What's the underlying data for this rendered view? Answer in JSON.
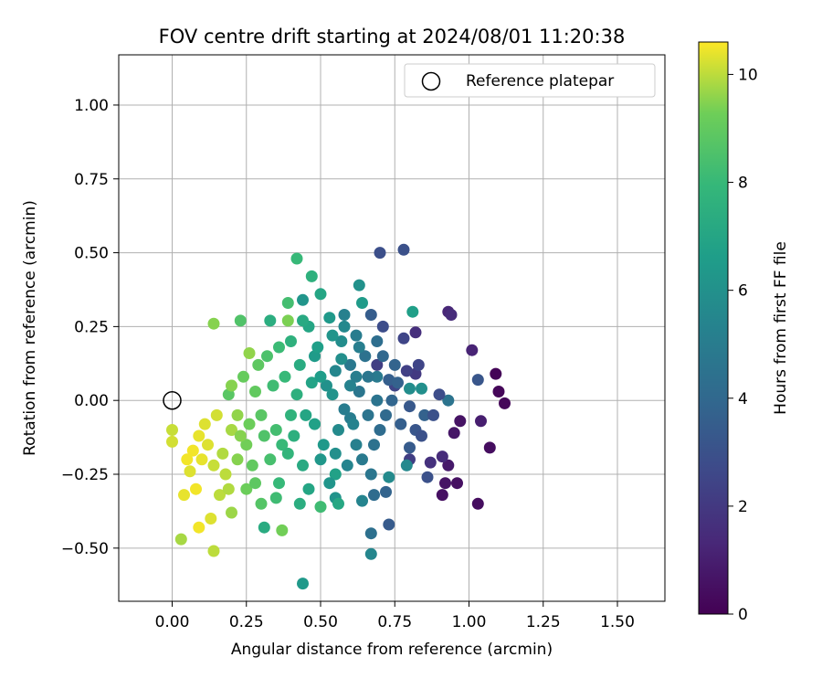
{
  "chart_data": {
    "type": "scatter",
    "title": "FOV centre drift starting at 2024/08/01 11:20:38",
    "xlabel": "Angular distance from reference (arcmin)",
    "ylabel": "Rotation from reference (arcmin)",
    "xlim": [
      -0.18,
      1.66
    ],
    "ylim": [
      -0.68,
      1.17
    ],
    "xticks": [
      0.0,
      0.25,
      0.5,
      0.75,
      1.0,
      1.25,
      1.5
    ],
    "xtick_labels": [
      "0.00",
      "0.25",
      "0.50",
      "0.75",
      "1.00",
      "1.25",
      "1.50"
    ],
    "yticks": [
      -0.5,
      -0.25,
      0.0,
      0.25,
      0.5,
      0.75,
      1.0
    ],
    "ytick_labels": [
      "−0.50",
      "−0.25",
      "0.00",
      "0.25",
      "0.50",
      "0.75",
      "1.00"
    ],
    "grid": true,
    "colormap": "viridis",
    "colorbar": {
      "label": "Hours from first FF file",
      "range": [
        0,
        10.6
      ],
      "ticks": [
        0,
        2,
        4,
        6,
        8,
        10
      ],
      "tick_labels": [
        "0",
        "2",
        "4",
        "6",
        "8",
        "10"
      ]
    },
    "legend": {
      "position": "top-right",
      "entries": [
        "Reference platepar"
      ]
    },
    "reference_point": {
      "x": 0.0,
      "y": 0.0
    },
    "series": [
      {
        "points": [
          [
            1.09,
            0.09,
            0.1
          ],
          [
            1.1,
            0.03,
            0.2
          ],
          [
            1.12,
            -0.01,
            0.2
          ],
          [
            1.07,
            -0.16,
            0.4
          ],
          [
            1.03,
            -0.35,
            0.4
          ],
          [
            0.96,
            -0.28,
            0.5
          ],
          [
            0.91,
            -0.32,
            0.5
          ],
          [
            0.92,
            -0.28,
            0.6
          ],
          [
            0.97,
            -0.07,
            0.6
          ],
          [
            0.95,
            -0.11,
            0.7
          ],
          [
            0.93,
            -0.22,
            0.8
          ],
          [
            1.04,
            -0.07,
            1.0
          ],
          [
            1.01,
            0.17,
            1.2
          ],
          [
            0.93,
            0.3,
            1.3
          ],
          [
            0.94,
            0.29,
            1.5
          ],
          [
            0.91,
            -0.19,
            1.5
          ],
          [
            0.82,
            0.23,
            1.6
          ],
          [
            0.87,
            -0.21,
            1.7
          ],
          [
            0.82,
            0.09,
            2.0
          ],
          [
            0.8,
            -0.2,
            2.2
          ],
          [
            0.69,
            0.12,
            2.2
          ],
          [
            0.79,
            0.1,
            2.3
          ],
          [
            0.83,
            0.12,
            2.5
          ],
          [
            0.78,
            0.21,
            2.5
          ],
          [
            0.75,
            0.05,
            2.5
          ],
          [
            0.71,
            0.25,
            2.8
          ],
          [
            0.7,
            0.5,
            2.9
          ],
          [
            0.78,
            0.51,
            3.0
          ],
          [
            0.86,
            -0.26,
            3.0
          ],
          [
            1.03,
            0.07,
            3.2
          ],
          [
            0.73,
            -0.42,
            3.4
          ],
          [
            0.8,
            -0.16,
            3.4
          ],
          [
            0.67,
            0.29,
            3.5
          ],
          [
            0.73,
            0.07,
            3.6
          ],
          [
            0.85,
            -0.05,
            3.7
          ],
          [
            0.72,
            -0.31,
            3.8
          ],
          [
            0.68,
            -0.32,
            4.2
          ],
          [
            0.67,
            -0.45,
            4.4
          ],
          [
            0.93,
            0.0,
            4.6
          ],
          [
            0.69,
            0.0,
            4.6
          ],
          [
            0.63,
            0.03,
            4.7
          ],
          [
            0.69,
            0.08,
            4.9
          ],
          [
            0.6,
            -0.06,
            5.0
          ],
          [
            0.58,
            0.29,
            5.2
          ],
          [
            0.64,
            -0.34,
            5.4
          ],
          [
            0.67,
            -0.52,
            5.5
          ],
          [
            0.79,
            -0.22,
            5.6
          ],
          [
            0.73,
            -0.26,
            5.7
          ],
          [
            0.8,
            0.04,
            5.8
          ],
          [
            0.84,
            0.04,
            5.9
          ],
          [
            0.63,
            0.39,
            6.0
          ],
          [
            0.55,
            -0.33,
            6.1
          ],
          [
            0.44,
            0.34,
            6.2
          ],
          [
            0.44,
            -0.62,
            6.4
          ],
          [
            0.64,
            0.33,
            6.5
          ],
          [
            0.81,
            0.3,
            6.7
          ],
          [
            0.55,
            -0.25,
            6.8
          ],
          [
            0.5,
            0.36,
            7.0
          ],
          [
            0.56,
            -0.35,
            7.1
          ],
          [
            0.31,
            -0.43,
            7.3
          ],
          [
            0.33,
            0.27,
            7.4
          ],
          [
            0.47,
            0.42,
            7.6
          ],
          [
            0.42,
            0.48,
            8.0
          ],
          [
            0.5,
            -0.36,
            8.2
          ],
          [
            0.39,
            0.33,
            8.3
          ],
          [
            0.23,
            0.27,
            8.6
          ],
          [
            0.19,
            0.02,
            8.8
          ],
          [
            0.37,
            -0.44,
            9.3
          ],
          [
            0.39,
            0.27,
            9.4
          ],
          [
            0.14,
            0.26,
            9.5
          ],
          [
            0.26,
            0.16,
            9.6
          ],
          [
            0.03,
            -0.47,
            9.8
          ],
          [
            0.14,
            -0.51,
            10.0
          ],
          [
            0.0,
            -0.1,
            10.1
          ],
          [
            0.0,
            -0.14,
            10.2
          ],
          [
            0.06,
            -0.24,
            10.3
          ],
          [
            0.04,
            -0.32,
            10.4
          ],
          [
            0.09,
            -0.43,
            10.5
          ],
          [
            0.55,
            0.1,
            5.5
          ],
          [
            0.52,
            0.05,
            6.0
          ],
          [
            0.58,
            -0.03,
            5.0
          ],
          [
            0.48,
            0.15,
            6.5
          ],
          [
            0.6,
            0.12,
            4.8
          ],
          [
            0.45,
            -0.05,
            7.0
          ],
          [
            0.62,
            -0.15,
            5.2
          ],
          [
            0.5,
            -0.2,
            6.3
          ],
          [
            0.57,
            0.2,
            5.8
          ],
          [
            0.65,
            0.15,
            4.5
          ],
          [
            0.42,
            0.02,
            7.5
          ],
          [
            0.38,
            0.08,
            8.0
          ],
          [
            0.35,
            -0.1,
            8.3
          ],
          [
            0.3,
            -0.05,
            8.8
          ],
          [
            0.28,
            0.03,
            9.0
          ],
          [
            0.25,
            -0.15,
            9.3
          ],
          [
            0.22,
            -0.2,
            9.5
          ],
          [
            0.2,
            -0.1,
            9.8
          ],
          [
            0.18,
            -0.25,
            10.0
          ],
          [
            0.15,
            -0.05,
            10.2
          ],
          [
            0.12,
            -0.15,
            10.3
          ],
          [
            0.1,
            -0.2,
            10.4
          ],
          [
            0.08,
            -0.3,
            10.5
          ],
          [
            0.32,
            0.15,
            8.5
          ],
          [
            0.4,
            0.2,
            7.6
          ],
          [
            0.46,
            0.25,
            7.0
          ],
          [
            0.53,
            0.28,
            6.4
          ],
          [
            0.6,
            0.05,
            5.3
          ],
          [
            0.66,
            -0.05,
            4.6
          ],
          [
            0.7,
            -0.1,
            4.2
          ],
          [
            0.74,
            0.0,
            3.9
          ],
          [
            0.77,
            -0.08,
            3.6
          ],
          [
            0.71,
            0.15,
            4.0
          ],
          [
            0.62,
            0.22,
            5.0
          ],
          [
            0.56,
            -0.1,
            5.7
          ],
          [
            0.51,
            -0.15,
            6.4
          ],
          [
            0.44,
            -0.22,
            7.2
          ],
          [
            0.36,
            -0.28,
            8.0
          ],
          [
            0.3,
            -0.35,
            8.7
          ],
          [
            0.25,
            -0.3,
            9.2
          ],
          [
            0.2,
            -0.38,
            9.7
          ],
          [
            0.16,
            -0.32,
            10.0
          ],
          [
            0.13,
            -0.4,
            10.3
          ],
          [
            0.34,
            0.05,
            8.2
          ],
          [
            0.43,
            0.12,
            7.3
          ],
          [
            0.48,
            -0.08,
            6.8
          ],
          [
            0.54,
            0.02,
            6.1
          ],
          [
            0.59,
            -0.22,
            5.4
          ],
          [
            0.64,
            -0.2,
            4.9
          ],
          [
            0.68,
            -0.15,
            4.5
          ],
          [
            0.76,
            0.06,
            3.7
          ],
          [
            0.82,
            -0.1,
            3.2
          ],
          [
            0.88,
            -0.05,
            3.0
          ],
          [
            0.9,
            0.02,
            2.8
          ],
          [
            0.37,
            -0.15,
            8.0
          ],
          [
            0.27,
            -0.22,
            9.0
          ],
          [
            0.24,
            0.08,
            9.1
          ],
          [
            0.2,
            0.05,
            9.5
          ],
          [
            0.17,
            -0.18,
            9.9
          ],
          [
            0.11,
            -0.08,
            10.3
          ],
          [
            0.07,
            -0.17,
            10.5
          ],
          [
            0.41,
            -0.12,
            7.5
          ],
          [
            0.47,
            0.06,
            6.9
          ],
          [
            0.57,
            0.14,
            5.9
          ],
          [
            0.61,
            -0.08,
            5.3
          ],
          [
            0.66,
            0.08,
            4.7
          ],
          [
            0.72,
            -0.05,
            4.1
          ],
          [
            0.53,
            -0.28,
            6.2
          ],
          [
            0.46,
            -0.3,
            7.0
          ],
          [
            0.39,
            -0.18,
            7.8
          ],
          [
            0.33,
            -0.2,
            8.4
          ],
          [
            0.29,
            0.12,
            8.9
          ],
          [
            0.26,
            -0.08,
            9.2
          ],
          [
            0.23,
            -0.12,
            9.5
          ],
          [
            0.49,
            0.18,
            6.7
          ],
          [
            0.44,
            0.27,
            7.2
          ],
          [
            0.54,
            0.22,
            6.2
          ],
          [
            0.63,
            0.18,
            5.1
          ],
          [
            0.69,
            0.2,
            4.3
          ],
          [
            0.75,
            0.12,
            3.8
          ],
          [
            0.8,
            -0.02,
            3.3
          ],
          [
            0.84,
            -0.12,
            3.0
          ],
          [
            0.58,
            0.25,
            5.6
          ],
          [
            0.36,
            0.18,
            8.1
          ],
          [
            0.31,
            -0.12,
            8.6
          ],
          [
            0.4,
            -0.05,
            7.7
          ],
          [
            0.5,
            0.08,
            6.6
          ],
          [
            0.55,
            -0.18,
            5.9
          ],
          [
            0.62,
            0.08,
            5.1
          ],
          [
            0.67,
            -0.25,
            4.7
          ],
          [
            0.43,
            -0.35,
            7.4
          ],
          [
            0.35,
            -0.33,
            8.2
          ],
          [
            0.28,
            -0.28,
            8.9
          ],
          [
            0.22,
            -0.05,
            9.6
          ],
          [
            0.19,
            -0.3,
            9.9
          ],
          [
            0.14,
            -0.22,
            10.1
          ],
          [
            0.09,
            -0.12,
            10.4
          ],
          [
            0.05,
            -0.2,
            10.5
          ]
        ]
      }
    ]
  }
}
